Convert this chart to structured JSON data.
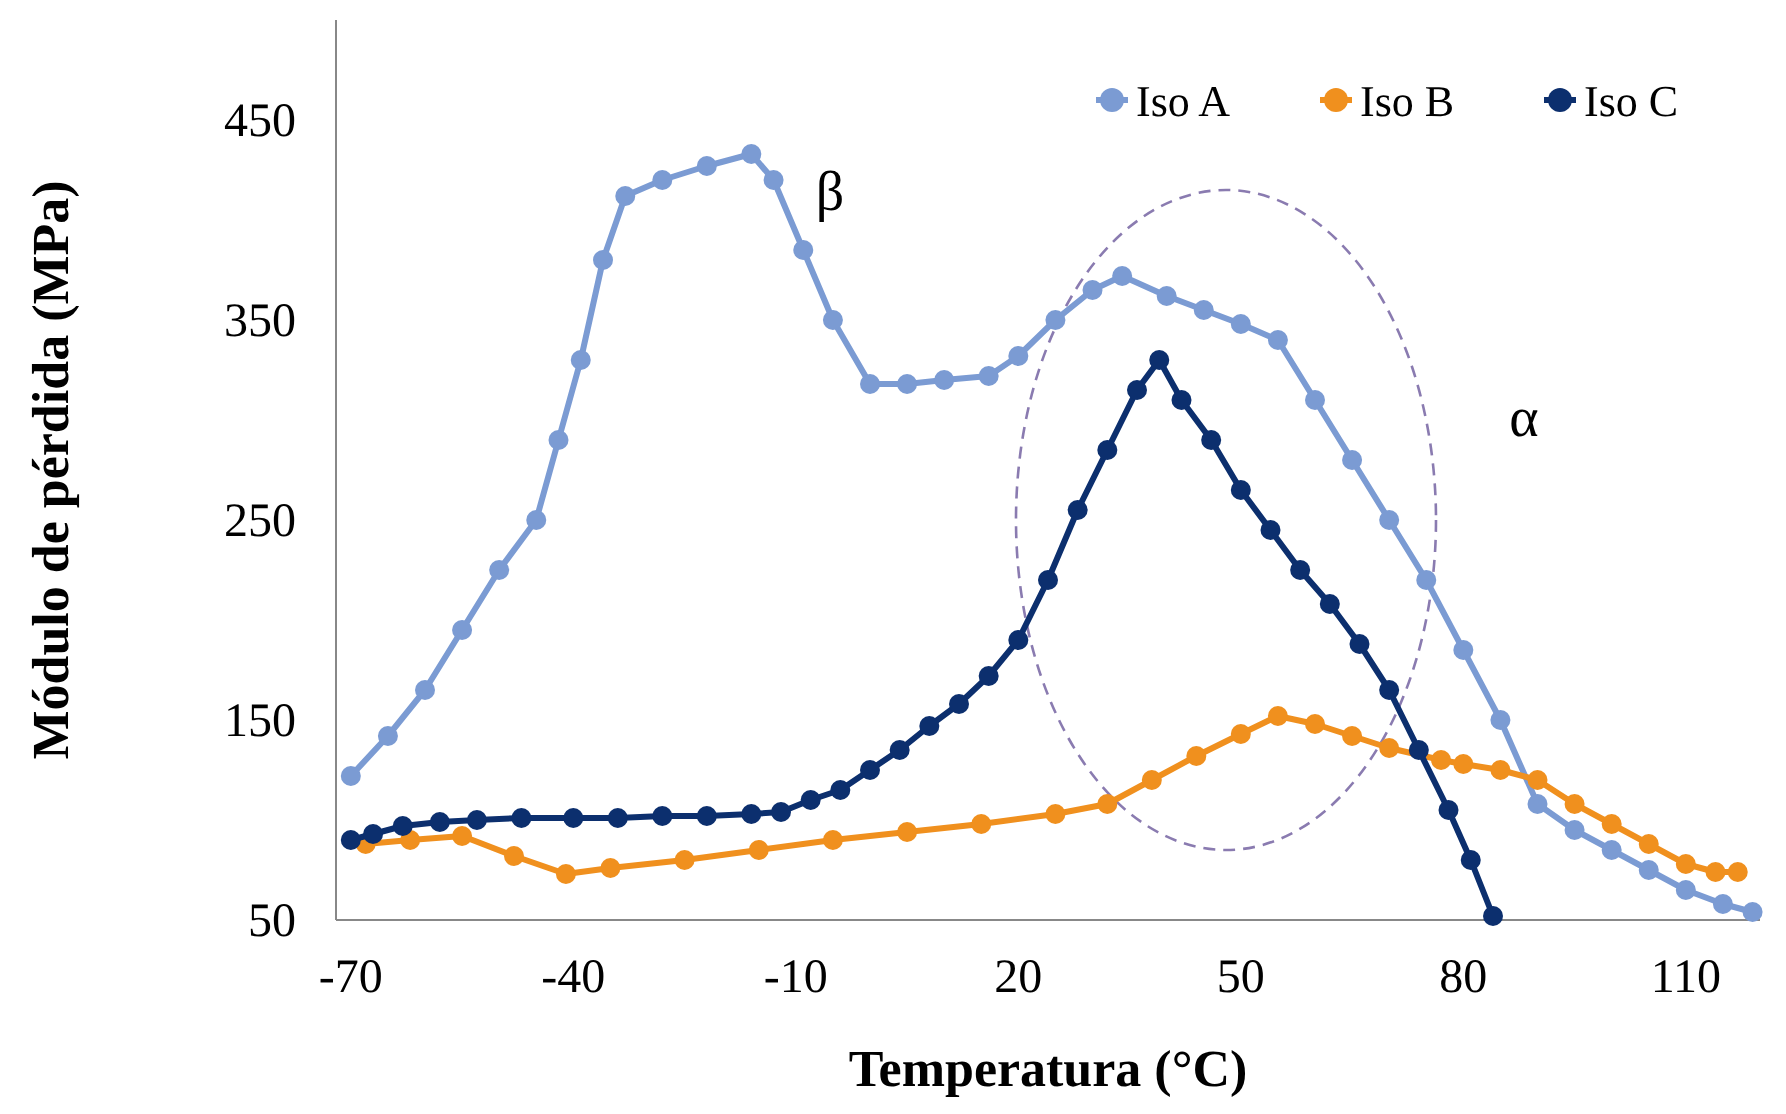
{
  "chart_data": {
    "type": "line",
    "xlabel": "Temperatura (°C)",
    "ylabel": "Módulo de pérdida (MPa)",
    "xlim": [
      -72,
      120
    ],
    "ylim": [
      50,
      500
    ],
    "xticks": [
      -70,
      -40,
      -10,
      20,
      50,
      80,
      110
    ],
    "yticks": [
      50,
      150,
      250,
      350,
      450
    ],
    "grid": false,
    "legend": "top right",
    "marker": "circle",
    "annotations": [
      "β",
      "α"
    ],
    "series": [
      {
        "name": "Iso A",
        "color": "#7b9bd3",
        "x": [
          -70,
          -65,
          -60,
          -55,
          -50,
          -45,
          -42,
          -39,
          -36,
          -33,
          -28,
          -22,
          -16,
          -13,
          -9,
          -5,
          0,
          5,
          10,
          16,
          20,
          25,
          30,
          34,
          40,
          45,
          50,
          55,
          60,
          65,
          70,
          75,
          80,
          85,
          90,
          95,
          100,
          105,
          110,
          115,
          119
        ],
        "values": [
          122,
          142,
          165,
          195,
          225,
          250,
          290,
          330,
          380,
          412,
          420,
          427,
          433,
          420,
          385,
          350,
          318,
          318,
          320,
          322,
          332,
          350,
          365,
          372,
          362,
          355,
          348,
          340,
          310,
          280,
          250,
          220,
          185,
          150,
          108,
          95,
          85,
          75,
          65,
          58,
          54
        ]
      },
      {
        "name": "Iso B",
        "color": "#f0901e",
        "x": [
          -68,
          -62,
          -55,
          -48,
          -41,
          -35,
          -25,
          -15,
          -5,
          5,
          15,
          25,
          32,
          38,
          44,
          50,
          55,
          60,
          65,
          70,
          77,
          80,
          85,
          90,
          95,
          100,
          105,
          110,
          114,
          117
        ],
        "values": [
          88,
          90,
          92,
          82,
          73,
          76,
          80,
          85,
          90,
          94,
          98,
          103,
          108,
          120,
          132,
          143,
          152,
          148,
          142,
          136,
          130,
          128,
          125,
          120,
          108,
          98,
          88,
          78,
          74,
          74
        ]
      },
      {
        "name": "Iso C",
        "color": "#0c2f6e",
        "x": [
          -70,
          -67,
          -63,
          -58,
          -53,
          -47,
          -40,
          -34,
          -28,
          -22,
          -16,
          -12,
          -8,
          -4,
          0,
          4,
          8,
          12,
          16,
          20,
          24,
          28,
          32,
          36,
          39,
          42,
          46,
          50,
          54,
          58,
          62,
          66,
          70,
          74,
          78,
          81,
          84
        ],
        "values": [
          90,
          93,
          97,
          99,
          100,
          101,
          101,
          101,
          102,
          102,
          103,
          104,
          110,
          115,
          125,
          135,
          147,
          158,
          172,
          190,
          220,
          255,
          285,
          315,
          330,
          310,
          290,
          265,
          245,
          225,
          208,
          188,
          165,
          135,
          105,
          80,
          52
        ]
      }
    ]
  }
}
